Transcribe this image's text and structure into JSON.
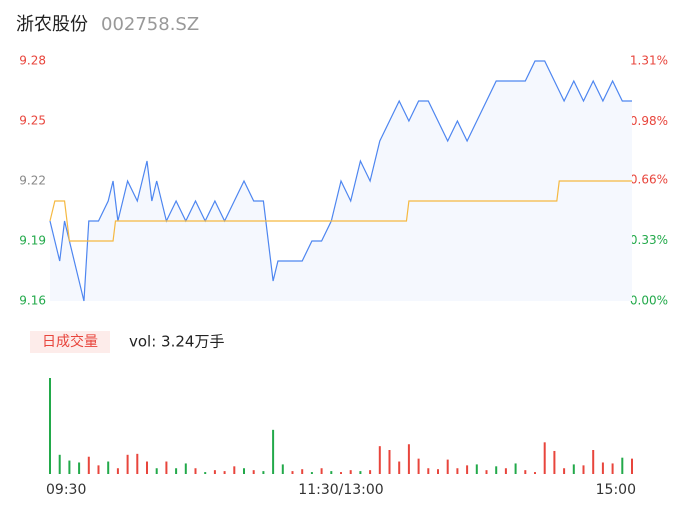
{
  "header": {
    "name": "浙农股份",
    "code": "002758.SZ"
  },
  "chart_data": [
    {
      "type": "line",
      "x": [
        0,
        2,
        4,
        6,
        8,
        12,
        14,
        16,
        20,
        24,
        26,
        28,
        32,
        36,
        38,
        40,
        42,
        44,
        48,
        52,
        56,
        60,
        64,
        68,
        72,
        76,
        80,
        84,
        88,
        92,
        94,
        100,
        104,
        108,
        112,
        116,
        120,
        124,
        128,
        132,
        136,
        140,
        144,
        148,
        152,
        156,
        160,
        164,
        168,
        172,
        176,
        180,
        184,
        188,
        192,
        196,
        200,
        204,
        208,
        212,
        216,
        220,
        224,
        228,
        232,
        236,
        240
      ],
      "series": [
        {
          "name": "price",
          "color": "#4e86f0",
          "values": [
            9.2,
            9.19,
            9.18,
            9.2,
            9.19,
            9.17,
            9.16,
            9.2,
            9.2,
            9.21,
            9.22,
            9.2,
            9.22,
            9.21,
            9.22,
            9.23,
            9.21,
            9.22,
            9.2,
            9.21,
            9.2,
            9.21,
            9.2,
            9.21,
            9.2,
            9.21,
            9.22,
            9.21,
            9.21,
            9.17,
            9.18,
            9.18,
            9.18,
            9.19,
            9.19,
            9.2,
            9.22,
            9.21,
            9.23,
            9.22,
            9.24,
            9.25,
            9.26,
            9.25,
            9.26,
            9.26,
            9.25,
            9.24,
            9.25,
            9.24,
            9.25,
            9.26,
            9.27,
            9.27,
            9.27,
            9.27,
            9.28,
            9.28,
            9.27,
            9.26,
            9.27,
            9.26,
            9.27,
            9.26,
            9.27,
            9.26,
            9.26
          ]
        },
        {
          "name": "average",
          "color": "#f5b942",
          "x": [
            0,
            2,
            6,
            8,
            26,
            27,
            147,
            148,
            209,
            210,
            240
          ],
          "values": [
            9.2,
            9.21,
            9.21,
            9.19,
            9.19,
            9.2,
            9.2,
            9.21,
            9.21,
            9.22,
            9.22
          ]
        }
      ],
      "xlim": [
        0,
        240
      ],
      "ylim": [
        9.16,
        9.28
      ],
      "yticks": [
        9.28,
        9.25,
        9.22,
        9.19,
        9.16
      ],
      "ytick_colors": [
        "#e8453c",
        "#e8453c",
        "#888888",
        "#22a94a",
        "#22a94a"
      ],
      "y2lim": [
        0,
        1.31
      ],
      "y2ticks": [
        {
          "value": 1.31,
          "label": "1.31%"
        },
        {
          "value": 0.98,
          "label": "0.98%"
        },
        {
          "value": 0.66,
          "label": "0.66%"
        },
        {
          "value": 0.33,
          "label": "0.33%"
        },
        {
          "value": 0,
          "label": "0.00%"
        }
      ],
      "y2tick_colors": [
        "#e8453c",
        "#e8453c",
        "#e8453c",
        "#22a94a",
        "#22a94a"
      ]
    },
    {
      "type": "bar",
      "title": "日成交量",
      "annotation": "vol: 3.24万手",
      "x": [
        0,
        4,
        8,
        12,
        16,
        20,
        24,
        28,
        32,
        36,
        40,
        44,
        48,
        52,
        56,
        60,
        64,
        68,
        72,
        76,
        80,
        84,
        88,
        92,
        96,
        100,
        104,
        108,
        112,
        116,
        120,
        124,
        128,
        132,
        136,
        140,
        144,
        148,
        152,
        156,
        160,
        164,
        168,
        172,
        176,
        180,
        184,
        188,
        192,
        196,
        200,
        204,
        208,
        212,
        216,
        220,
        224,
        228,
        232,
        236,
        240
      ],
      "values": [
        1000,
        200,
        140,
        120,
        180,
        90,
        130,
        60,
        200,
        210,
        130,
        60,
        130,
        60,
        110,
        60,
        20,
        40,
        30,
        80,
        60,
        40,
        30,
        460,
        100,
        30,
        50,
        20,
        60,
        30,
        20,
        40,
        30,
        40,
        290,
        250,
        130,
        310,
        160,
        60,
        50,
        150,
        60,
        90,
        100,
        40,
        80,
        60,
        110,
        40,
        20,
        330,
        240,
        60,
        100,
        90,
        250,
        120,
        110,
        170,
        160
      ],
      "colors": [
        "#22a94a",
        "#22a94a",
        "#22a94a",
        "#22a94a",
        "#e8453c",
        "#e8453c",
        "#22a94a",
        "#e8453c",
        "#e8453c",
        "#e8453c",
        "#e8453c",
        "#22a94a",
        "#e8453c",
        "#22a94a",
        "#22a94a",
        "#e8453c",
        "#22a94a",
        "#e8453c",
        "#e8453c",
        "#e8453c",
        "#22a94a",
        "#e8453c",
        "#22a94a",
        "#22a94a",
        "#22a94a",
        "#e8453c",
        "#e8453c",
        "#22a94a",
        "#e8453c",
        "#22a94a",
        "#e8453c",
        "#e8453c",
        "#22a94a",
        "#e8453c",
        "#e8453c",
        "#e8453c",
        "#e8453c",
        "#e8453c",
        "#e8453c",
        "#e8453c",
        "#e8453c",
        "#e8453c",
        "#e8453c",
        "#e8453c",
        "#22a94a",
        "#e8453c",
        "#22a94a",
        "#e8453c",
        "#22a94a",
        "#e8453c",
        "#e8453c",
        "#e8453c",
        "#e8453c",
        "#e8453c",
        "#22a94a",
        "#e8453c",
        "#e8453c",
        "#e8453c",
        "#e8453c",
        "#22a94a",
        "#e8453c"
      ],
      "xlim": [
        0,
        240
      ],
      "ylim": [
        0,
        1000
      ],
      "xticks": [
        {
          "value": 0,
          "label": "09:30"
        },
        {
          "value": 120,
          "label": "11:30/13:00"
        },
        {
          "value": 240,
          "label": "15:00"
        }
      ]
    }
  ]
}
